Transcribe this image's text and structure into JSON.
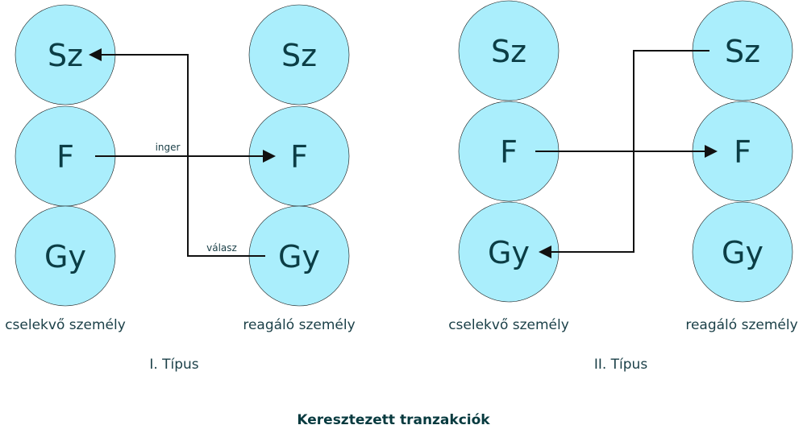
{
  "colors": {
    "circle_fill": "#aaeefc",
    "text": "#0b3d45",
    "arrow": "#111111"
  },
  "diagram_title": "Keresztezett tranzakciók",
  "type1": {
    "title": "I. Típus",
    "left": {
      "label": "cselekvő személy",
      "circles": [
        "Sz",
        "F",
        "Gy"
      ]
    },
    "right": {
      "label": "reagáló személy",
      "circles": [
        "Sz",
        "F",
        "Gy"
      ]
    },
    "arrow_labels": {
      "stimulus": "inger",
      "response": "válasz"
    }
  },
  "type2": {
    "title": "II. Típus",
    "left": {
      "label": "cselekvő személy",
      "circles": [
        "Sz",
        "F",
        "Gy"
      ]
    },
    "right": {
      "label": "reagáló személy",
      "circles": [
        "Sz",
        "F",
        "Gy"
      ]
    }
  }
}
